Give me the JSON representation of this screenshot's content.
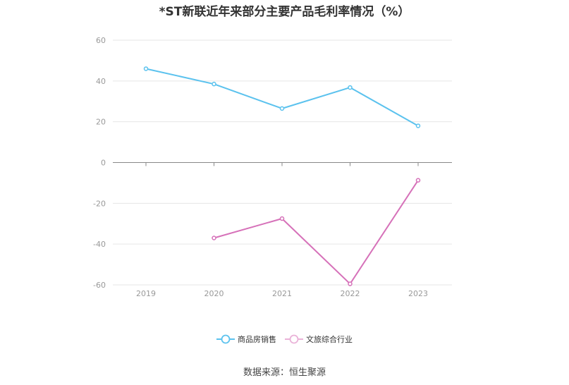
{
  "chart_data": {
    "type": "line",
    "title": "*ST新联近年来部分主要产品毛利率情况（%）",
    "xlabel": "",
    "ylabel": "",
    "categories": [
      "2019",
      "2020",
      "2021",
      "2022",
      "2023"
    ],
    "ylim": [
      -60,
      60
    ],
    "yticks": [
      60,
      40,
      20,
      0,
      -20,
      -40,
      -60
    ],
    "grid": true,
    "legend_position": "bottom-center",
    "series": [
      {
        "name": "商品房销售",
        "color": "#5bc2ee",
        "values": [
          46.0,
          38.5,
          26.5,
          36.8,
          18.0
        ]
      },
      {
        "name": "文旅综合行业",
        "color": "#d671b9",
        "values": [
          null,
          -37.0,
          -27.5,
          -59.5,
          -8.7
        ]
      }
    ]
  },
  "source": "数据来源：恒生聚源"
}
